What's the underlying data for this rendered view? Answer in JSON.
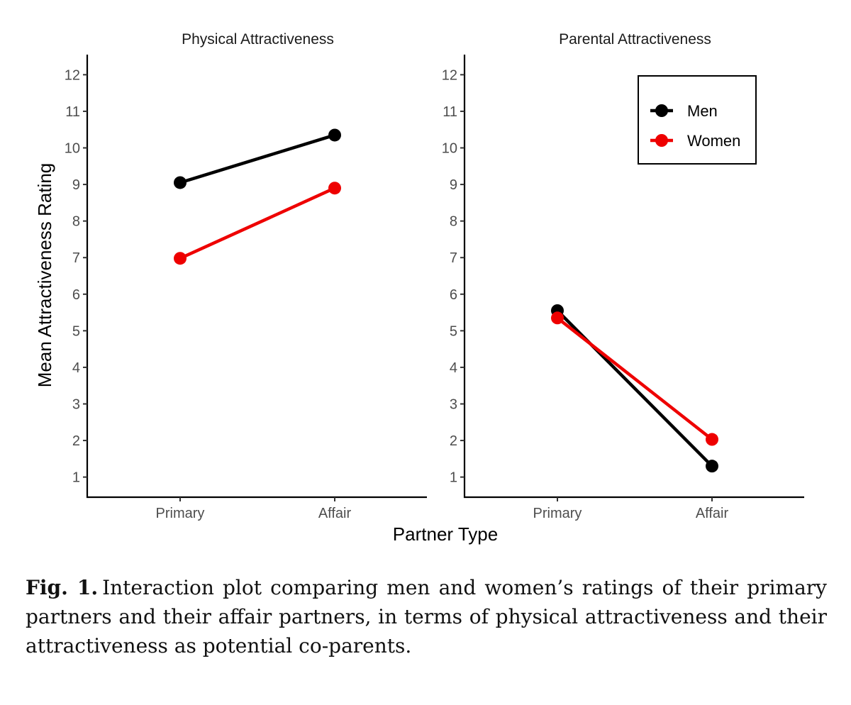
{
  "chart_data": {
    "type": "line",
    "ylabel": "Mean Attractiveness Rating",
    "xlabel": "Partner Type",
    "categories": [
      "Primary",
      "Affair"
    ],
    "ylim": [
      0.45,
      12.55
    ],
    "yticks": [
      1,
      2,
      3,
      4,
      5,
      6,
      7,
      8,
      9,
      10,
      11,
      12
    ],
    "legend": {
      "placement": "top-right of right panel",
      "entries": [
        {
          "name": "Men",
          "color": "#000000"
        },
        {
          "name": "Women",
          "color": "#ee0000"
        }
      ]
    },
    "panels": [
      {
        "title": "Physical Attractiveness",
        "series": [
          {
            "name": "Men",
            "color": "#000000",
            "values": [
              9.05,
              10.35
            ]
          },
          {
            "name": "Women",
            "color": "#ee0000",
            "values": [
              6.98,
              8.9
            ]
          }
        ]
      },
      {
        "title": "Parental Attractiveness",
        "series": [
          {
            "name": "Men",
            "color": "#000000",
            "values": [
              5.55,
              1.3
            ]
          },
          {
            "name": "Women",
            "color": "#ee0000",
            "values": [
              5.35,
              2.03
            ]
          }
        ]
      }
    ]
  },
  "caption": {
    "label": "Fig. 1.",
    "text": "Interaction plot comparing men and women’s ratings of their primary partners and their affair partners, in terms of physical attractiveness and their attractiveness as potential co-parents."
  }
}
